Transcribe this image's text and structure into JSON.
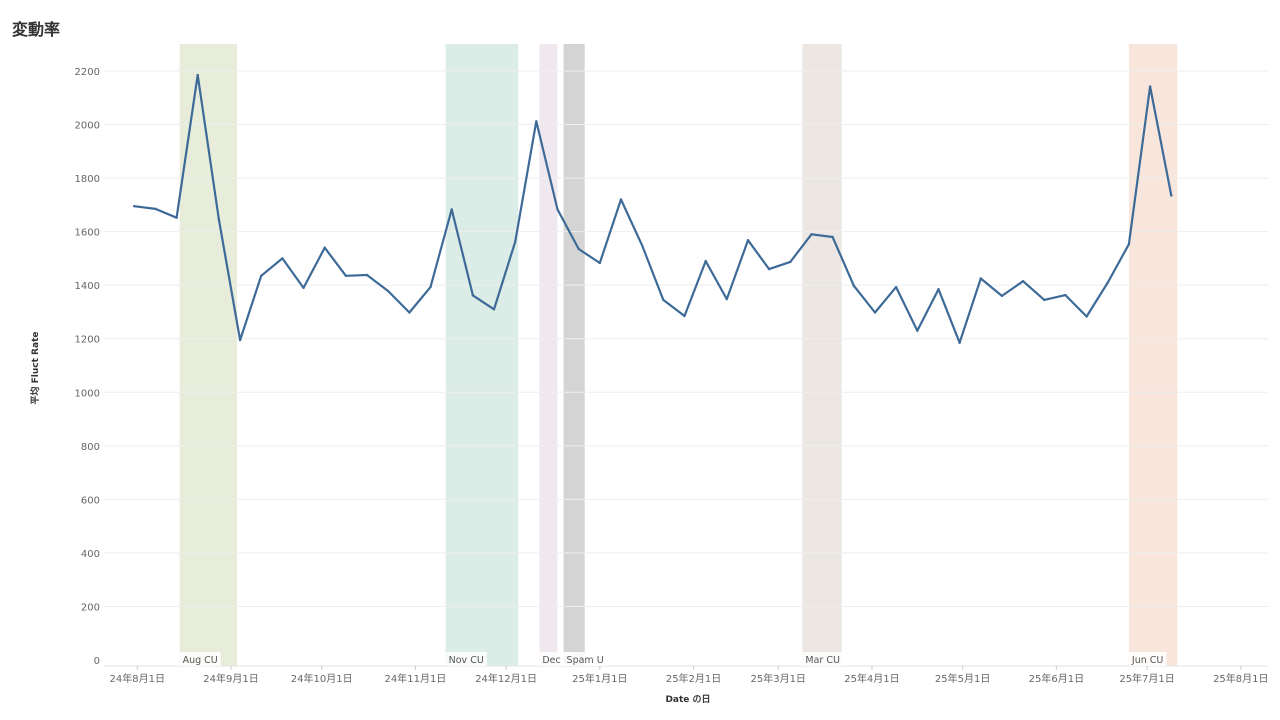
{
  "title": "変動率",
  "chart_data": {
    "type": "line",
    "title": "変動率",
    "xlabel": "Date の日",
    "ylabel": "平均 Fluct Rate",
    "ylim": [
      0,
      2300
    ],
    "yticks": [
      0,
      200,
      400,
      600,
      800,
      1000,
      1200,
      1400,
      1600,
      1800,
      2000,
      2200
    ],
    "xlim": [
      "2024-07-21",
      "2025-08-10"
    ],
    "xticks": [
      {
        "date": "2024-08-01",
        "label": "24年8月1日"
      },
      {
        "date": "2024-09-01",
        "label": "24年9月1日"
      },
      {
        "date": "2024-10-01",
        "label": "24年10月1日"
      },
      {
        "date": "2024-11-01",
        "label": "24年11月1日"
      },
      {
        "date": "2024-12-01",
        "label": "24年12月1日"
      },
      {
        "date": "2025-01-01",
        "label": "25年1月1日"
      },
      {
        "date": "2025-02-01",
        "label": "25年2月1日"
      },
      {
        "date": "2025-03-01",
        "label": "25年3月1日"
      },
      {
        "date": "2025-04-01",
        "label": "25年4月1日"
      },
      {
        "date": "2025-05-01",
        "label": "25年5月1日"
      },
      {
        "date": "2025-06-01",
        "label": "25年6月1日"
      },
      {
        "date": "2025-07-01",
        "label": "25年7月1日"
      },
      {
        "date": "2025-08-01",
        "label": "25年8月1日"
      }
    ],
    "grid": true,
    "line_color": "#3e6a98",
    "series": [
      {
        "points": [
          [
            "2024-07-31",
            1695
          ],
          [
            "2024-08-07",
            1685
          ],
          [
            "2024-08-14",
            1652
          ],
          [
            "2024-08-21",
            2185
          ],
          [
            "2024-08-28",
            1645
          ],
          [
            "2024-09-04",
            1195
          ],
          [
            "2024-09-11",
            1435
          ],
          [
            "2024-09-18",
            1500
          ],
          [
            "2024-09-25",
            1390
          ],
          [
            "2024-10-02",
            1540
          ],
          [
            "2024-10-09",
            1435
          ],
          [
            "2024-10-16",
            1438
          ],
          [
            "2024-10-23",
            1378
          ],
          [
            "2024-10-30",
            1298
          ],
          [
            "2024-11-06",
            1393
          ],
          [
            "2024-11-13",
            1683
          ],
          [
            "2024-11-20",
            1362
          ],
          [
            "2024-11-27",
            1310
          ],
          [
            "2024-12-04",
            1562
          ],
          [
            "2024-12-11",
            2012
          ],
          [
            "2024-12-18",
            1683
          ],
          [
            "2024-12-25",
            1535
          ],
          [
            "2025-01-01",
            1483
          ],
          [
            "2025-01-08",
            1720
          ],
          [
            "2025-01-15",
            1548
          ],
          [
            "2025-01-22",
            1345
          ],
          [
            "2025-01-29",
            1285
          ],
          [
            "2025-02-05",
            1490
          ],
          [
            "2025-02-12",
            1348
          ],
          [
            "2025-02-19",
            1568
          ],
          [
            "2025-02-26",
            1460
          ],
          [
            "2025-03-05",
            1487
          ],
          [
            "2025-03-12",
            1590
          ],
          [
            "2025-03-19",
            1580
          ],
          [
            "2025-03-26",
            1398
          ],
          [
            "2025-04-02",
            1298
          ],
          [
            "2025-04-09",
            1393
          ],
          [
            "2025-04-16",
            1230
          ],
          [
            "2025-04-23",
            1385
          ],
          [
            "2025-04-30",
            1185
          ],
          [
            "2025-05-07",
            1425
          ],
          [
            "2025-05-14",
            1360
          ],
          [
            "2025-05-21",
            1415
          ],
          [
            "2025-05-28",
            1345
          ],
          [
            "2025-06-04",
            1363
          ],
          [
            "2025-06-11",
            1283
          ],
          [
            "2025-06-18",
            1410
          ],
          [
            "2025-06-25",
            1553
          ],
          [
            "2025-07-02",
            2142
          ],
          [
            "2025-07-09",
            1735
          ]
        ]
      }
    ],
    "annotation_bands": [
      {
        "label": "Aug CU",
        "start": "2024-08-15",
        "end": "2024-09-03",
        "color": "#e7edda"
      },
      {
        "label": "Nov CU",
        "start": "2024-11-11",
        "end": "2024-12-05",
        "color": "#dcece7"
      },
      {
        "label": "Dec C",
        "start": "2024-12-12",
        "end": "2024-12-18",
        "color": "#f0e8ef"
      },
      {
        "label": "Spam U",
        "start": "2024-12-20",
        "end": "2024-12-27",
        "color": "#d4d4d4"
      },
      {
        "label": "Mar CU",
        "start": "2025-03-09",
        "end": "2025-03-22",
        "color": "#ece7e2"
      },
      {
        "label": "Jun CU",
        "start": "2025-06-25",
        "end": "2025-07-11",
        "color": "#f8e6dc"
      }
    ]
  }
}
